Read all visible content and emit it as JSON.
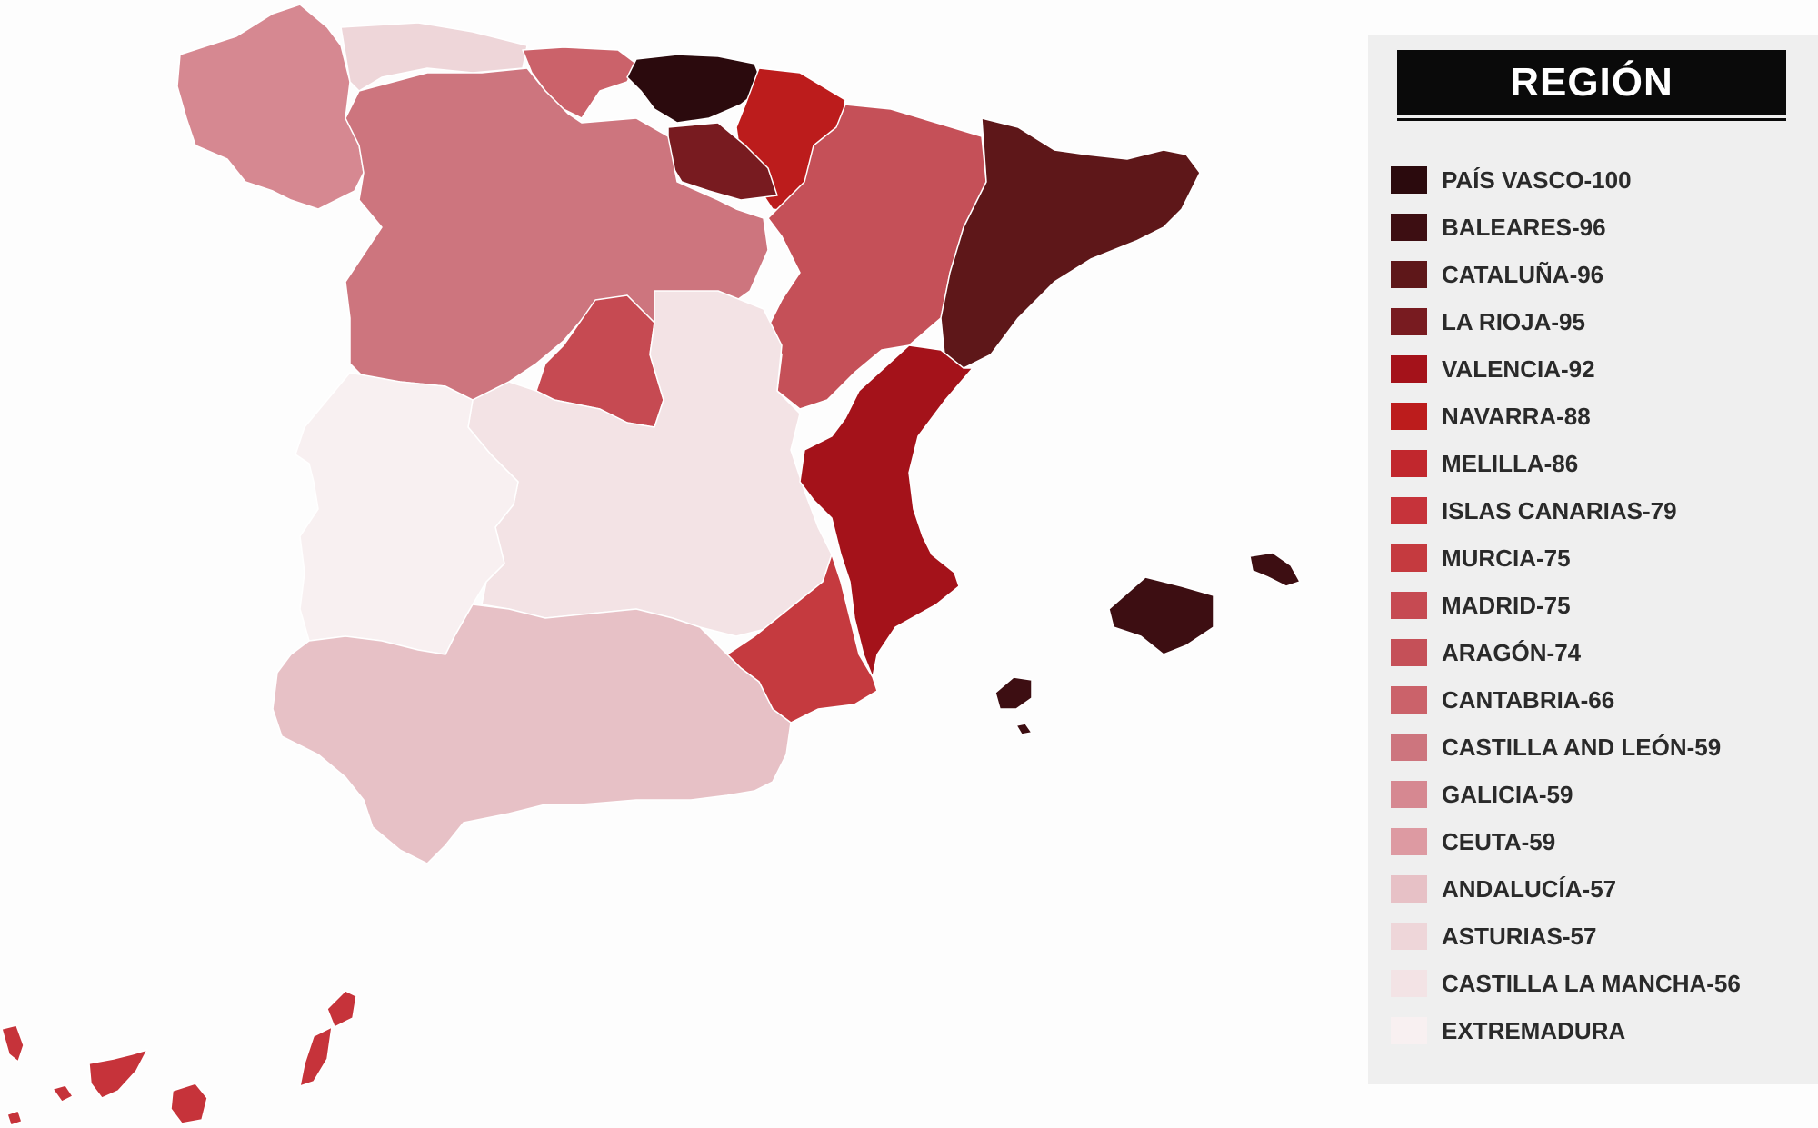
{
  "legend": {
    "title": "REGIÓN",
    "items": [
      {
        "label": "PAÍS VASCO-100",
        "color": "#2b0a0d"
      },
      {
        "label": "BALEARES-96",
        "color": "#3d0e12"
      },
      {
        "label": "CATALUÑA-96",
        "color": "#5e1719"
      },
      {
        "label": "LA RIOJA-95",
        "color": "#781b20"
      },
      {
        "label": "VALENCIA-92",
        "color": "#a4121a"
      },
      {
        "label": "NAVARRA-88",
        "color": "#bc1c1c"
      },
      {
        "label": "MELILLA-86",
        "color": "#c1272d"
      },
      {
        "label": "ISLAS CANARIAS-79",
        "color": "#c6333a"
      },
      {
        "label": "MURCIA-75",
        "color": "#c53a3f"
      },
      {
        "label": "MADRID-75",
        "color": "#c64a52"
      },
      {
        "label": "ARAGÓN-74",
        "color": "#c55058"
      },
      {
        "label": "CANTABRIA-66",
        "color": "#cb626a"
      },
      {
        "label": "CASTILLA AND LEÓN-59",
        "color": "#cd757e"
      },
      {
        "label": "GALICIA-59",
        "color": "#d68891"
      },
      {
        "label": "CEUTA-59",
        "color": "#dd9aa2"
      },
      {
        "label": "ANDALUCÍA-57",
        "color": "#e7c1c6"
      },
      {
        "label": "ASTURIAS-57",
        "color": "#eed6d9"
      },
      {
        "label": "CASTILLA LA MANCHA-56",
        "color": "#f3e3e5"
      },
      {
        "label": "EXTREMADURA",
        "color": "#f8f0f1"
      }
    ]
  },
  "map": {
    "regions": [
      {
        "id": "galicia",
        "color": "#d68891"
      },
      {
        "id": "asturias",
        "color": "#eed6d9"
      },
      {
        "id": "cantabria",
        "color": "#cb626a"
      },
      {
        "id": "pais-vasco",
        "color": "#2b0a0d"
      },
      {
        "id": "navarra",
        "color": "#bc1c1c"
      },
      {
        "id": "la-rioja",
        "color": "#781b20"
      },
      {
        "id": "castilla-y-leon",
        "color": "#cd757e"
      },
      {
        "id": "aragon",
        "color": "#c55058"
      },
      {
        "id": "cataluna",
        "color": "#5e1719"
      },
      {
        "id": "madrid",
        "color": "#c64a52"
      },
      {
        "id": "castilla-la-mancha",
        "color": "#f3e3e5"
      },
      {
        "id": "extremadura",
        "color": "#f8f0f1"
      },
      {
        "id": "valencia",
        "color": "#a4121a"
      },
      {
        "id": "murcia",
        "color": "#c53a3f"
      },
      {
        "id": "andalucia",
        "color": "#e7c1c6"
      },
      {
        "id": "baleares",
        "color": "#3d0e12"
      },
      {
        "id": "islas-canarias",
        "color": "#c6333a"
      }
    ]
  }
}
